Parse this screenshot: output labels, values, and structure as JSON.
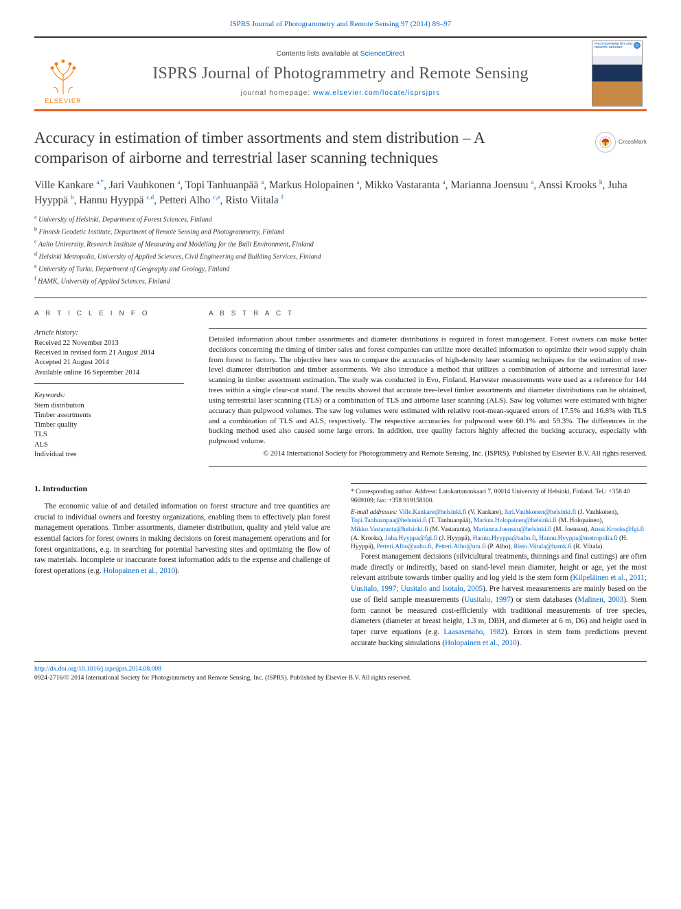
{
  "citation": "ISPRS Journal of Photogrammetry and Remote Sensing 97 (2014) 89–97",
  "masthead": {
    "contents_prefix": "Contents lists available at ",
    "contents_link": "ScienceDirect",
    "journal": "ISPRS Journal of Photogrammetry and Remote Sensing",
    "homepage_prefix": "journal homepage: ",
    "homepage_url": "www.elsevier.com/locate/isprsjprs",
    "publisher_word": "ELSEVIER",
    "cover_text": "PHOTOGRAMMETRY AND REMOTE SENSING"
  },
  "colors": {
    "accent_orange": "#eb5e1d",
    "link_blue": "#0066cc",
    "rule_dark": "#333333",
    "text_gray": "#3a3a3a"
  },
  "article": {
    "title": "Accuracy in estimation of timber assortments and stem distribution – A comparison of airborne and terrestrial laser scanning techniques",
    "crossmark_label": "CrossMark"
  },
  "authors_html": "Ville Kankare <sup>a,*</sup>, Jari Vauhkonen <sup>a</sup>, Topi Tanhuanpää <sup>a</sup>, Markus Holopainen <sup>a</sup>, Mikko Vastaranta <sup>a</sup>, Marianna Joensuu <sup>a</sup>, Anssi Krooks <sup>b</sup>, Juha Hyyppä <sup>b</sup>, Hannu Hyyppä <sup>c,d</sup>, Petteri Alho <sup>c,e</sup>, Risto Viitala <sup>f</sup>",
  "affiliations": [
    {
      "key": "a",
      "text": "University of Helsinki, Department of Forest Sciences, Finland"
    },
    {
      "key": "b",
      "text": "Finnish Geodetic Institute, Department of Remote Sensing and Photogrammetry, Finland"
    },
    {
      "key": "c",
      "text": "Aalto University, Research Institute of Measuring and Modelling for the Built Environment, Finland"
    },
    {
      "key": "d",
      "text": "Helsinki Metropolia, University of Applied Sciences, Civil Engineering and Building Services, Finland"
    },
    {
      "key": "e",
      "text": "University of Turku, Department of Geography and Geology, Finland"
    },
    {
      "key": "f",
      "text": "HAMK, University of Applied Sciences, Finland"
    }
  ],
  "article_info": {
    "label": "A R T I C L E   I N F O",
    "history_label": "Article history:",
    "history": [
      "Received 22 November 2013",
      "Received in revised form 21 August 2014",
      "Accepted 21 August 2014",
      "Available online 16 September 2014"
    ],
    "keywords_label": "Keywords:",
    "keywords": [
      "Stem distribution",
      "Timber assortments",
      "Timber quality",
      "TLS",
      "ALS",
      "Individual tree"
    ]
  },
  "abstract": {
    "label": "A B S T R A C T",
    "text": "Detailed information about timber assortments and diameter distributions is required in forest management. Forest owners can make better decisions concerning the timing of timber sales and forest companies can utilize more detailed information to optimize their wood supply chain from forest to factory. The objective here was to compare the accuracies of high-density laser scanning techniques for the estimation of tree-level diameter distribution and timber assortments. We also introduce a method that utilizes a combination of airborne and terrestrial laser scanning in timber assortment estimation. The study was conducted in Evo, Finland. Harvester measurements were used as a reference for 144 trees within a single clear-cut stand. The results showed that accurate tree-level timber assortments and diameter distributions can be obtained, using terrestrial laser scanning (TLS) or a combination of TLS and airborne laser scanning (ALS). Saw log volumes were estimated with higher accuracy than pulpwood volumes. The saw log volumes were estimated with relative root-mean-squared errors of 17.5% and 16.8% with TLS and a combination of TLS and ALS, respectively. The respective accuracies for pulpwood were 60.1% and 59.3%. The differences in the bucking method used also caused some large errors. In addition, tree quality factors highly affected the bucking accuracy, especially with pulpwood volume.",
    "copyright": "© 2014 International Society for Photogrammetry and Remote Sensing, Inc. (ISPRS). Published by Elsevier B.V. All rights reserved."
  },
  "section_heading": "1. Introduction",
  "body_paragraphs": [
    "The economic value of and detailed information on forest structure and tree quantities are crucial to individual owners and forestry organizations, enabling them to effectively plan forest management operations. Timber assortments, diameter distribution, quality and yield value are essential factors for forest owners in making decisions on forest management operations and for forest organizations, e.g. in searching for potential harvesting sites and optimizing the flow of raw materials. Incomplete or inaccurate forest information adds to the expense and challenge of forest operations (e.g. Holopainen et al., 2010).",
    "Forest management decisions (silvicultural treatments, thinnings and final cuttings) are often made directly or indirectly, based on stand-level mean diameter, height or age, yet the most relevant attribute towards timber quality and log yield is the stem form (Kilpeläinen et al., 2011; Uusitalo, 1997; Uusitalo and Isotalo, 2005). Pre harvest measurements are mainly based on the use of field sample measurements (Uusitalo, 1997) or stem databases (Malinen, 2003). Stem form cannot be measured cost-efficiently with traditional measurements of tree species, diameters (diameter at breast height, 1.3 m, DBH, and diameter at 6 m, D6) and height used in taper curve equations (e.g. Laasasenaho, 1982). Errors in stem form predictions prevent accurate bucking simulations (Holopainen et al., 2010)."
  ],
  "correspondence": {
    "text": "Corresponding author. Address: Latokartanonkaari 7, 00014 University of Helsinki, Finland. Tel.: +358 40 9669109; fax: +358 919158100.",
    "emails_label": "E-mail addresses:",
    "emails": "Ville.Kankare@helsinki.fi (V. Kankare), Jari.Vauhkonen@helsinki.fi (J. Vauhkonen), Topi.Tanhuanpaa@helsinki.fi (T. Tanhuanpää), Markus.Holopainen@helsinki.fi (M. Holopainen), Mikko.Vastaranta@helsinki.fi (M. Vastaranta), Marianna.Joensuu@helsinki.fi (M. Joensuu), Anssi.Krooks@fgi.fi (A. Krooks), Juha.Hyyppa@fgi.fi (J. Hyyppä), Hannu.Hyyppa@aalto.fi, Hannu.Hyyppa@metropolia.fi (H. Hyyppä), Petteri.Alho@aalto.fi, Petteri.Alho@utu.fi (P. Alho), Risto.Viitala@hamk.fi (R. Viitala)."
  },
  "footer": {
    "doi": "http://dx.doi.org/10.1016/j.isprsjprs.2014.08.008",
    "issn_line": "0924-2716/© 2014 International Society for Photogrammetry and Remote Sensing, Inc. (ISPRS). Published by Elsevier B.V. All rights reserved."
  }
}
